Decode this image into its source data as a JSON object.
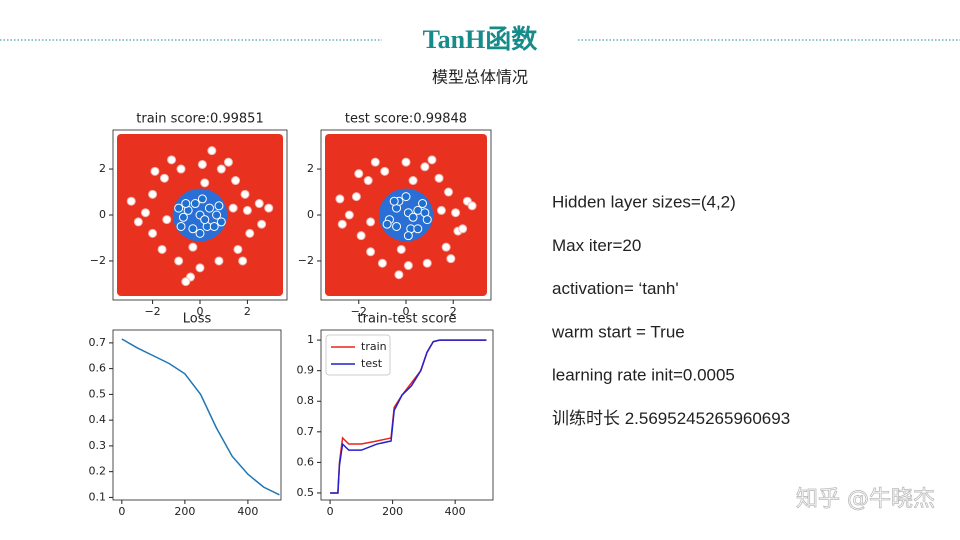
{
  "header": {
    "title": "TanH函数",
    "subtitle": "模型总体情况"
  },
  "info": [
    "Hidden layer sizes=(4,2)",
    "Max iter=20",
    "activation=  ‘tanh'",
    "warm start = True",
    "learning rate init=0.0005",
    "训练时长 2.5695245265960693"
  ],
  "watermark": "知乎 @牛晓杰",
  "chart_data": [
    {
      "type": "scatter",
      "title": "train score:0.99851",
      "background": "#e8311f",
      "region_color": "#2a6fd6",
      "xlim": [
        -3.67,
        3.67
      ],
      "ylim": [
        -3.7,
        3.7
      ],
      "xticks": [
        {
          "value": -2,
          "label": "−2"
        },
        0,
        2
      ],
      "yticks": [
        {
          "value": -2,
          "label": "−2"
        },
        0,
        2
      ],
      "series": [
        {
          "color": "#f3b8b0",
          "x": [
            2.0,
            1.9,
            1.5,
            0.9,
            0.1,
            -0.8,
            -1.5,
            -2.0,
            -2.3,
            -2.0,
            -1.6,
            -0.9,
            0.0,
            0.8,
            1.6,
            2.1,
            2.5,
            1.2,
            -1.2,
            -2.6,
            -0.4,
            1.8,
            2.6,
            -1.9,
            1.4,
            -1.4,
            0.2,
            -0.3,
            2.9,
            -2.9,
            0.5,
            -0.6
          ],
          "y": [
            0.2,
            0.9,
            1.5,
            2.0,
            2.2,
            2.0,
            1.6,
            0.9,
            0.1,
            -0.8,
            -1.5,
            -2.0,
            -2.3,
            -2.0,
            -1.5,
            -0.8,
            0.5,
            2.3,
            2.4,
            -0.3,
            -2.7,
            -2.0,
            -0.4,
            1.9,
            0.3,
            -0.2,
            1.4,
            -1.4,
            0.3,
            0.6,
            2.8,
            -2.9
          ]
        },
        {
          "color": "#1f6fd0",
          "x": [
            0,
            0.4,
            -0.5,
            0.3,
            -0.3,
            0.7,
            -0.7,
            0.1,
            -0.2,
            0.6,
            -0.6,
            0.2,
            0.8,
            -0.8,
            0.0,
            0.9,
            -0.9
          ],
          "y": [
            0,
            0.3,
            0.2,
            -0.5,
            -0.6,
            0.0,
            -0.1,
            0.7,
            0.5,
            -0.5,
            0.5,
            -0.2,
            0.4,
            -0.5,
            -0.8,
            -0.3,
            0.3
          ]
        }
      ]
    },
    {
      "type": "scatter",
      "title": "test score:0.99848",
      "background": "#e8311f",
      "region_color": "#2a6fd6",
      "xlim": [
        -3.6,
        3.6
      ],
      "ylim": [
        -3.7,
        3.7
      ],
      "xticks": [
        {
          "value": -2,
          "label": "−2"
        },
        0,
        2
      ],
      "yticks": [
        {
          "value": -2,
          "label": "−2"
        },
        0,
        2
      ],
      "series": [
        {
          "color": "#f3b8b0",
          "x": [
            2.1,
            1.8,
            1.4,
            0.8,
            0.0,
            -0.9,
            -1.6,
            -2.1,
            -2.4,
            -1.9,
            -1.5,
            -1.0,
            0.1,
            0.9,
            1.7,
            2.2,
            2.6,
            1.1,
            -1.3,
            -2.7,
            -0.3,
            1.9,
            2.4,
            -2.0,
            1.5,
            -1.5,
            0.3,
            -0.2,
            2.8,
            -2.8
          ],
          "y": [
            0.1,
            1.0,
            1.6,
            2.1,
            2.3,
            1.9,
            1.5,
            0.8,
            0.0,
            -0.9,
            -1.6,
            -2.1,
            -2.2,
            -2.1,
            -1.4,
            -0.7,
            0.6,
            2.4,
            2.3,
            -0.4,
            -2.6,
            -1.9,
            -0.6,
            1.8,
            0.2,
            -0.3,
            1.5,
            -1.5,
            0.4,
            0.7
          ]
        },
        {
          "color": "#1f6fd0",
          "x": [
            0.1,
            0.5,
            -0.4,
            0.2,
            -0.4,
            0.8,
            -0.7,
            0.0,
            -0.3,
            0.5,
            -0.5,
            0.3,
            0.7,
            -0.8,
            0.1,
            0.9
          ],
          "y": [
            0.1,
            0.2,
            0.3,
            -0.6,
            -0.5,
            0.1,
            -0.2,
            0.8,
            0.6,
            -0.6,
            0.6,
            -0.1,
            0.5,
            -0.4,
            -0.9,
            -0.2
          ]
        }
      ]
    },
    {
      "type": "line",
      "title": "Loss",
      "xlim": [
        -28,
        505
      ],
      "ylim": [
        0.09,
        0.75
      ],
      "xticks": [
        0,
        200,
        400
      ],
      "yticks": [
        0.1,
        0.2,
        0.3,
        0.4,
        0.5,
        0.6,
        0.7
      ],
      "x": [
        0,
        50,
        100,
        150,
        200,
        250,
        300,
        350,
        400,
        450,
        500
      ],
      "series": [
        {
          "color": "#1f77b4",
          "values": [
            0.715,
            0.68,
            0.65,
            0.62,
            0.58,
            0.5,
            0.37,
            0.26,
            0.19,
            0.14,
            0.11
          ]
        }
      ]
    },
    {
      "type": "line",
      "title": "train-test score",
      "xlim": [
        -29,
        521
      ],
      "ylim": [
        0.477,
        1.033
      ],
      "legend": "upper left",
      "xticks": [
        0,
        200,
        400
      ],
      "yticks": [
        0.5,
        0.6,
        0.7,
        0.8,
        0.9,
        1.0
      ],
      "x": [
        0,
        25,
        30,
        40,
        50,
        60,
        80,
        100,
        150,
        195,
        205,
        230,
        260,
        290,
        310,
        330,
        350,
        400,
        500
      ],
      "series": [
        {
          "name": "train",
          "color": "#e8231f",
          "values": [
            0.5,
            0.5,
            0.6,
            0.68,
            0.67,
            0.66,
            0.66,
            0.66,
            0.67,
            0.68,
            0.78,
            0.82,
            0.86,
            0.9,
            0.96,
            0.995,
            1.0,
            1.0,
            1.0
          ]
        },
        {
          "name": "test",
          "color": "#2222cc",
          "values": [
            0.5,
            0.5,
            0.59,
            0.66,
            0.65,
            0.64,
            0.64,
            0.64,
            0.66,
            0.67,
            0.77,
            0.82,
            0.85,
            0.9,
            0.96,
            0.995,
            1.0,
            1.0,
            1.0
          ]
        }
      ]
    }
  ]
}
